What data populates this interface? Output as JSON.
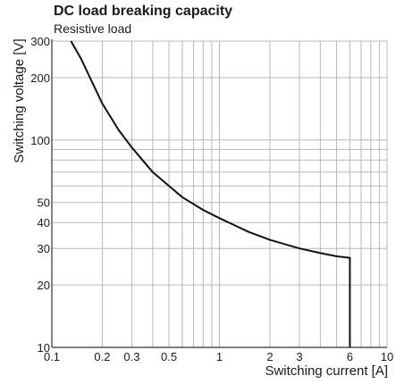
{
  "chart_data": {
    "type": "line",
    "title": "DC load breaking capacity",
    "subtitle": "Resistive load",
    "xlabel": "Switching current [A]",
    "ylabel": "Switching voltage [V]",
    "x_scale": "log",
    "y_scale": "log",
    "xlim": [
      0.1,
      10
    ],
    "ylim": [
      10,
      300
    ],
    "grid": true,
    "x_ticks": [
      0.1,
      0.2,
      0.3,
      0.5,
      1,
      2,
      3,
      6,
      10
    ],
    "x_tick_labels": [
      "0.1",
      "0.2",
      "0.3",
      "0.5",
      "1",
      "2",
      "3",
      "6",
      "10"
    ],
    "y_ticks": [
      10,
      20,
      30,
      40,
      50,
      100,
      200,
      300
    ],
    "y_tick_labels": [
      "10",
      "20",
      "30",
      "40",
      "50",
      "100",
      "200",
      "300"
    ],
    "series": [
      {
        "x": [
          0.13,
          0.15,
          0.2,
          0.25,
          0.3,
          0.4,
          0.5,
          0.6,
          0.8,
          1,
          1.5,
          2,
          3,
          4,
          5,
          6,
          6,
          6
        ],
        "y": [
          300,
          245,
          150,
          112,
          92,
          70,
          60,
          53,
          46,
          42,
          36,
          33,
          30,
          28.5,
          27.5,
          27,
          20,
          10
        ]
      }
    ],
    "line_color": "#111111",
    "grid_color": "#b8b8b8"
  }
}
